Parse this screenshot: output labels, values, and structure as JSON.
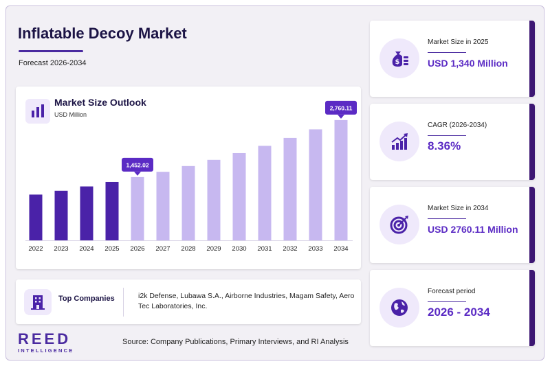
{
  "header": {
    "title": "Inflatable Decoy Market",
    "subtitle": "Forecast 2026-2034"
  },
  "chart_card": {
    "title": "Market Size Outlook",
    "unit": "USD Million"
  },
  "chart_data": {
    "type": "bar",
    "title": "Market Size Outlook",
    "ylabel": "USD Million",
    "categories": [
      "2022",
      "2023",
      "2024",
      "2025",
      "2026",
      "2027",
      "2028",
      "2029",
      "2030",
      "2031",
      "2032",
      "2033",
      "2034"
    ],
    "values": [
      1050,
      1138,
      1237,
      1340,
      1452.02,
      1573,
      1705,
      1847,
      2002,
      2169,
      2350,
      2547,
      2760.11
    ],
    "historical_through": "2025",
    "ylim": [
      0,
      2900
    ],
    "grid": false,
    "callouts": [
      {
        "category": "2026",
        "label": "1,452.02"
      },
      {
        "category": "2034",
        "label": "2,760.11"
      }
    ],
    "colors": {
      "historical": "#4a22a8",
      "forecast": "#c7b8f0",
      "callout": "#5b2bc4"
    }
  },
  "companies": {
    "label": "Top Companies",
    "text": "i2k Defense, Lubawa S.A., Airborne Industries, Magam Safety, Aero Tec Laboratories, Inc."
  },
  "stats": [
    {
      "label": "Market Size in 2025",
      "value": "USD 1,340 Million",
      "icon": "money-bag-icon"
    },
    {
      "label": "CAGR (2026-2034)",
      "value": "8.36%",
      "icon": "growth-chart-icon"
    },
    {
      "label": "Market Size in 2034",
      "value": "USD 2760.11 Million",
      "icon": "target-icon"
    },
    {
      "label": "Forecast period",
      "value": "2026 - 2034",
      "icon": "globe-icon"
    }
  ],
  "footer": {
    "logo_main": "REED",
    "logo_sub": "INTELLIGENCE",
    "source": "Source: Company Publications, Primary Interviews, and RI Analysis"
  }
}
